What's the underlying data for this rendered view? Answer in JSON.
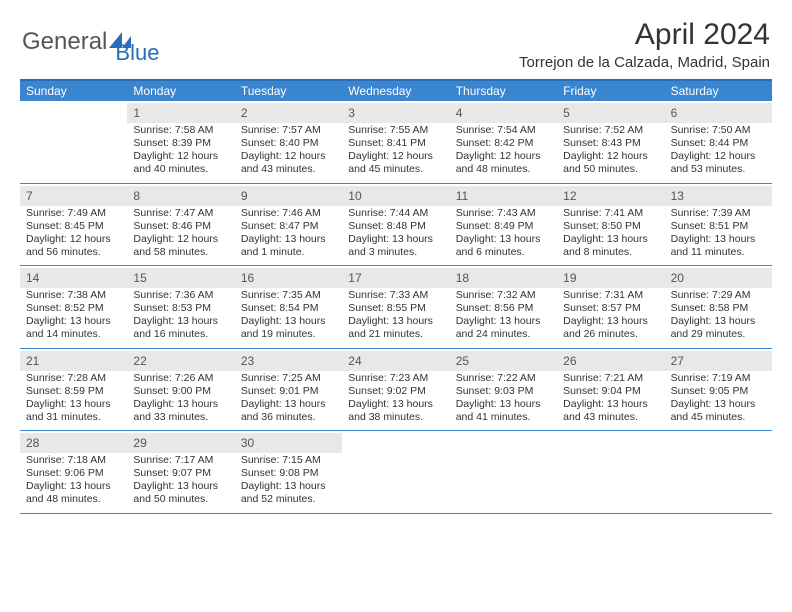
{
  "logo": {
    "text_general": "General",
    "text_blue": "Blue"
  },
  "title": "April 2024",
  "location": "Torrejon de la Calzada, Madrid, Spain",
  "colors": {
    "header_blue": "#3a85d0",
    "border_blue": "#2a6db8",
    "daynum_bg": "#e8e8e8",
    "text": "#333333",
    "logo_gray": "#555555"
  },
  "weekdays": [
    "Sunday",
    "Monday",
    "Tuesday",
    "Wednesday",
    "Thursday",
    "Friday",
    "Saturday"
  ],
  "weeks": [
    [
      null,
      {
        "n": "1",
        "sr": "Sunrise: 7:58 AM",
        "ss": "Sunset: 8:39 PM",
        "d1": "Daylight: 12 hours",
        "d2": "and 40 minutes."
      },
      {
        "n": "2",
        "sr": "Sunrise: 7:57 AM",
        "ss": "Sunset: 8:40 PM",
        "d1": "Daylight: 12 hours",
        "d2": "and 43 minutes."
      },
      {
        "n": "3",
        "sr": "Sunrise: 7:55 AM",
        "ss": "Sunset: 8:41 PM",
        "d1": "Daylight: 12 hours",
        "d2": "and 45 minutes."
      },
      {
        "n": "4",
        "sr": "Sunrise: 7:54 AM",
        "ss": "Sunset: 8:42 PM",
        "d1": "Daylight: 12 hours",
        "d2": "and 48 minutes."
      },
      {
        "n": "5",
        "sr": "Sunrise: 7:52 AM",
        "ss": "Sunset: 8:43 PM",
        "d1": "Daylight: 12 hours",
        "d2": "and 50 minutes."
      },
      {
        "n": "6",
        "sr": "Sunrise: 7:50 AM",
        "ss": "Sunset: 8:44 PM",
        "d1": "Daylight: 12 hours",
        "d2": "and 53 minutes."
      }
    ],
    [
      {
        "n": "7",
        "sr": "Sunrise: 7:49 AM",
        "ss": "Sunset: 8:45 PM",
        "d1": "Daylight: 12 hours",
        "d2": "and 56 minutes."
      },
      {
        "n": "8",
        "sr": "Sunrise: 7:47 AM",
        "ss": "Sunset: 8:46 PM",
        "d1": "Daylight: 12 hours",
        "d2": "and 58 minutes."
      },
      {
        "n": "9",
        "sr": "Sunrise: 7:46 AM",
        "ss": "Sunset: 8:47 PM",
        "d1": "Daylight: 13 hours",
        "d2": "and 1 minute."
      },
      {
        "n": "10",
        "sr": "Sunrise: 7:44 AM",
        "ss": "Sunset: 8:48 PM",
        "d1": "Daylight: 13 hours",
        "d2": "and 3 minutes."
      },
      {
        "n": "11",
        "sr": "Sunrise: 7:43 AM",
        "ss": "Sunset: 8:49 PM",
        "d1": "Daylight: 13 hours",
        "d2": "and 6 minutes."
      },
      {
        "n": "12",
        "sr": "Sunrise: 7:41 AM",
        "ss": "Sunset: 8:50 PM",
        "d1": "Daylight: 13 hours",
        "d2": "and 8 minutes."
      },
      {
        "n": "13",
        "sr": "Sunrise: 7:39 AM",
        "ss": "Sunset: 8:51 PM",
        "d1": "Daylight: 13 hours",
        "d2": "and 11 minutes."
      }
    ],
    [
      {
        "n": "14",
        "sr": "Sunrise: 7:38 AM",
        "ss": "Sunset: 8:52 PM",
        "d1": "Daylight: 13 hours",
        "d2": "and 14 minutes."
      },
      {
        "n": "15",
        "sr": "Sunrise: 7:36 AM",
        "ss": "Sunset: 8:53 PM",
        "d1": "Daylight: 13 hours",
        "d2": "and 16 minutes."
      },
      {
        "n": "16",
        "sr": "Sunrise: 7:35 AM",
        "ss": "Sunset: 8:54 PM",
        "d1": "Daylight: 13 hours",
        "d2": "and 19 minutes."
      },
      {
        "n": "17",
        "sr": "Sunrise: 7:33 AM",
        "ss": "Sunset: 8:55 PM",
        "d1": "Daylight: 13 hours",
        "d2": "and 21 minutes."
      },
      {
        "n": "18",
        "sr": "Sunrise: 7:32 AM",
        "ss": "Sunset: 8:56 PM",
        "d1": "Daylight: 13 hours",
        "d2": "and 24 minutes."
      },
      {
        "n": "19",
        "sr": "Sunrise: 7:31 AM",
        "ss": "Sunset: 8:57 PM",
        "d1": "Daylight: 13 hours",
        "d2": "and 26 minutes."
      },
      {
        "n": "20",
        "sr": "Sunrise: 7:29 AM",
        "ss": "Sunset: 8:58 PM",
        "d1": "Daylight: 13 hours",
        "d2": "and 29 minutes."
      }
    ],
    [
      {
        "n": "21",
        "sr": "Sunrise: 7:28 AM",
        "ss": "Sunset: 8:59 PM",
        "d1": "Daylight: 13 hours",
        "d2": "and 31 minutes."
      },
      {
        "n": "22",
        "sr": "Sunrise: 7:26 AM",
        "ss": "Sunset: 9:00 PM",
        "d1": "Daylight: 13 hours",
        "d2": "and 33 minutes."
      },
      {
        "n": "23",
        "sr": "Sunrise: 7:25 AM",
        "ss": "Sunset: 9:01 PM",
        "d1": "Daylight: 13 hours",
        "d2": "and 36 minutes."
      },
      {
        "n": "24",
        "sr": "Sunrise: 7:23 AM",
        "ss": "Sunset: 9:02 PM",
        "d1": "Daylight: 13 hours",
        "d2": "and 38 minutes."
      },
      {
        "n": "25",
        "sr": "Sunrise: 7:22 AM",
        "ss": "Sunset: 9:03 PM",
        "d1": "Daylight: 13 hours",
        "d2": "and 41 minutes."
      },
      {
        "n": "26",
        "sr": "Sunrise: 7:21 AM",
        "ss": "Sunset: 9:04 PM",
        "d1": "Daylight: 13 hours",
        "d2": "and 43 minutes."
      },
      {
        "n": "27",
        "sr": "Sunrise: 7:19 AM",
        "ss": "Sunset: 9:05 PM",
        "d1": "Daylight: 13 hours",
        "d2": "and 45 minutes."
      }
    ],
    [
      {
        "n": "28",
        "sr": "Sunrise: 7:18 AM",
        "ss": "Sunset: 9:06 PM",
        "d1": "Daylight: 13 hours",
        "d2": "and 48 minutes."
      },
      {
        "n": "29",
        "sr": "Sunrise: 7:17 AM",
        "ss": "Sunset: 9:07 PM",
        "d1": "Daylight: 13 hours",
        "d2": "and 50 minutes."
      },
      {
        "n": "30",
        "sr": "Sunrise: 7:15 AM",
        "ss": "Sunset: 9:08 PM",
        "d1": "Daylight: 13 hours",
        "d2": "and 52 minutes."
      },
      null,
      null,
      null,
      null
    ]
  ]
}
